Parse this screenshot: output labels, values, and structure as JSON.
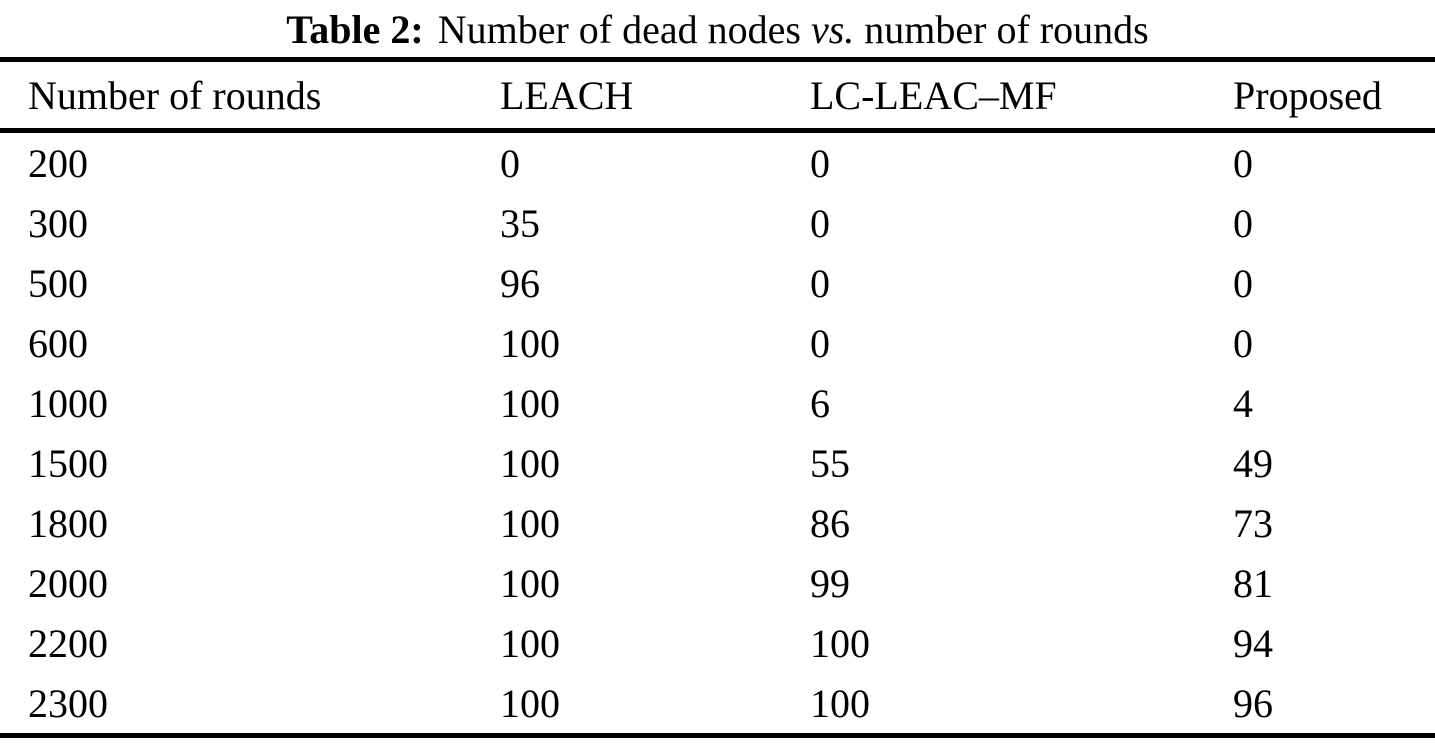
{
  "caption": {
    "label": "Table 2:",
    "before_vs": "Number of dead nodes",
    "vs": "vs.",
    "after_vs": "number of rounds"
  },
  "table": {
    "columns": [
      "Number of rounds",
      "LEACH",
      "LC-LEAC–MF",
      "Proposed"
    ],
    "rows": [
      [
        "200",
        "0",
        "0",
        "0"
      ],
      [
        "300",
        "35",
        "0",
        "0"
      ],
      [
        "500",
        "96",
        "0",
        "0"
      ],
      [
        "600",
        "100",
        "0",
        "0"
      ],
      [
        "1000",
        "100",
        "6",
        "4"
      ],
      [
        "1500",
        "100",
        "55",
        "49"
      ],
      [
        "1800",
        "100",
        "86",
        "73"
      ],
      [
        "2000",
        "100",
        "99",
        "81"
      ],
      [
        "2200",
        "100",
        "100",
        "94"
      ],
      [
        "2300",
        "100",
        "100",
        "96"
      ]
    ]
  },
  "colors": {
    "text": "#000000",
    "background": "#ffffff",
    "rule": "#000000"
  }
}
